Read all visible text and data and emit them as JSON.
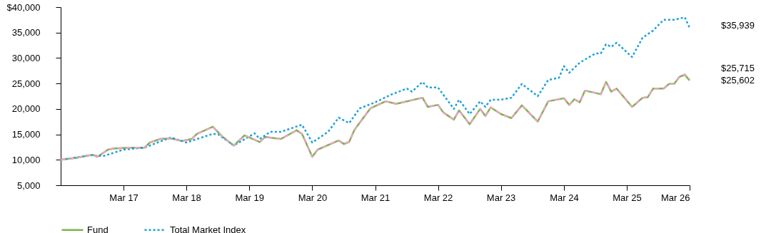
{
  "chart_data": {
    "type": "line",
    "xlim": [
      "2016-03",
      "2026-03"
    ],
    "ylim": [
      5000,
      40000
    ],
    "xticks": [
      {
        "value": "2017-03",
        "label": "Mar 17"
      },
      {
        "value": "2018-03",
        "label": "Mar 18"
      },
      {
        "value": "2019-03",
        "label": "Mar 19"
      },
      {
        "value": "2020-03",
        "label": "Mar 20"
      },
      {
        "value": "2021-03",
        "label": "Mar 21"
      },
      {
        "value": "2022-03",
        "label": "Mar 22"
      },
      {
        "value": "2023-03",
        "label": "Mar 23"
      },
      {
        "value": "2024-03",
        "label": "Mar 24"
      },
      {
        "value": "2025-03",
        "label": "Mar 25"
      },
      {
        "value": "2026-03",
        "label": "Mar 26"
      }
    ],
    "yticks": [
      {
        "value": 5000,
        "label": "5,000"
      },
      {
        "value": 10000,
        "label": "10,000"
      },
      {
        "value": 15000,
        "label": "15,000"
      },
      {
        "value": 20000,
        "label": "20,000"
      },
      {
        "value": 25000,
        "label": "25,000"
      },
      {
        "value": 30000,
        "label": "30,000"
      },
      {
        "value": 35000,
        "label": "35,000"
      },
      {
        "value": 40000,
        "label": "$40,000"
      }
    ],
    "legend": "bottom",
    "series": [
      {
        "name": "Fund",
        "color": "#7ab648",
        "line_style": "solid",
        "x": [
          "2016-03",
          "2016-06",
          "2016-09",
          "2016-10",
          "2016-12",
          "2017-01",
          "2017-04",
          "2017-07",
          "2017-08",
          "2017-10",
          "2017-12",
          "2018-02",
          "2018-04",
          "2018-05",
          "2018-08",
          "2018-10",
          "2018-12",
          "2019-02",
          "2019-03",
          "2019-05",
          "2019-06",
          "2019-09",
          "2019-12",
          "2020-01",
          "2020-03",
          "2020-04",
          "2020-08",
          "2020-09",
          "2020-10",
          "2020-11",
          "2021-02",
          "2021-05",
          "2021-07",
          "2021-12",
          "2022-01",
          "2022-03",
          "2022-04",
          "2022-06",
          "2022-07",
          "2022-09",
          "2022-11",
          "2022-12",
          "2023-01",
          "2023-03",
          "2023-05",
          "2023-07",
          "2023-10",
          "2023-12",
          "2024-03",
          "2024-04",
          "2024-05",
          "2024-06",
          "2024-07",
          "2024-10",
          "2024-11",
          "2024-12",
          "2025-01",
          "2025-04",
          "2025-06",
          "2025-07",
          "2025-08",
          "2025-10",
          "2025-11",
          "2025-12",
          "2026-01",
          "2026-02",
          "2026-03"
        ],
        "values": [
          10000,
          10400,
          11000,
          10600,
          12000,
          12200,
          12400,
          12400,
          13400,
          14100,
          14200,
          13700,
          14100,
          15100,
          16500,
          14400,
          12800,
          14800,
          14400,
          13500,
          14500,
          14100,
          15800,
          15100,
          10600,
          12000,
          13800,
          13100,
          13500,
          15900,
          20100,
          21500,
          21000,
          22200,
          20400,
          20800,
          19300,
          17900,
          19700,
          17000,
          20000,
          18600,
          20300,
          19000,
          18200,
          20700,
          17500,
          21500,
          22100,
          20800,
          21900,
          21300,
          23600,
          22900,
          25300,
          23400,
          24000,
          20400,
          22200,
          22300,
          24000,
          24000,
          24900,
          24900,
          26300,
          26700,
          25602
        ]
      },
      {
        "name": "Total Market Index",
        "color": "#1ea1d9",
        "line_style": "dotted",
        "x": [
          "2016-03",
          "2016-06",
          "2016-09",
          "2016-11",
          "2017-03",
          "2017-07",
          "2017-12",
          "2018-03",
          "2018-08",
          "2018-09",
          "2018-12",
          "2019-04",
          "2019-05",
          "2019-07",
          "2019-09",
          "2020-01",
          "2020-03",
          "2020-06",
          "2020-08",
          "2020-10",
          "2020-12",
          "2021-03",
          "2021-06",
          "2021-09",
          "2021-10",
          "2021-12",
          "2022-01",
          "2022-03",
          "2022-06",
          "2022-07",
          "2022-09",
          "2022-11",
          "2022-12",
          "2023-01",
          "2023-03",
          "2023-05",
          "2023-07",
          "2023-10",
          "2023-12",
          "2024-02",
          "2024-03",
          "2024-04",
          "2024-06",
          "2024-09",
          "2024-10",
          "2024-11",
          "2024-12",
          "2025-01",
          "2025-04",
          "2025-06",
          "2025-08",
          "2025-10",
          "2025-12",
          "2026-02",
          "2026-03"
        ],
        "values": [
          10000,
          10500,
          10900,
          10700,
          12000,
          12400,
          14400,
          13400,
          15100,
          15000,
          12800,
          15200,
          14100,
          15500,
          15500,
          16900,
          13400,
          15500,
          18300,
          17200,
          20100,
          21300,
          22800,
          24000,
          23400,
          25300,
          24200,
          24200,
          20000,
          21800,
          19000,
          21500,
          20400,
          21800,
          21800,
          22200,
          24900,
          22500,
          25700,
          26100,
          28400,
          27100,
          29100,
          30900,
          30900,
          32700,
          32200,
          33000,
          30200,
          34000,
          35400,
          37500,
          37500,
          38000,
          35939
        ]
      },
      {
        "color": "#e8a3c3",
        "line_style": "dashed",
        "x": [
          "2016-03",
          "2016-06",
          "2016-09",
          "2016-10",
          "2016-12",
          "2017-01",
          "2017-04",
          "2017-07",
          "2017-08",
          "2017-10",
          "2017-12",
          "2018-02",
          "2018-04",
          "2018-05",
          "2018-08",
          "2018-10",
          "2018-12",
          "2019-02",
          "2019-03",
          "2019-05",
          "2019-06",
          "2019-09",
          "2019-12",
          "2020-01",
          "2020-03",
          "2020-04",
          "2020-08",
          "2020-09",
          "2020-10",
          "2020-11",
          "2021-02",
          "2021-05",
          "2021-07",
          "2021-12",
          "2022-01",
          "2022-03",
          "2022-04",
          "2022-06",
          "2022-07",
          "2022-09",
          "2022-11",
          "2022-12",
          "2023-01",
          "2023-03",
          "2023-05",
          "2023-07",
          "2023-10",
          "2023-12",
          "2024-03",
          "2024-04",
          "2024-05",
          "2024-06",
          "2024-07",
          "2024-10",
          "2024-11",
          "2024-12",
          "2025-01",
          "2025-04",
          "2025-06",
          "2025-07",
          "2025-08",
          "2025-10",
          "2025-11",
          "2025-12",
          "2026-01",
          "2026-02",
          "2026-03"
        ],
        "values": [
          10000,
          10400,
          11000,
          10600,
          12000,
          12200,
          12400,
          12400,
          13400,
          14100,
          14200,
          13700,
          14100,
          15100,
          16500,
          14400,
          12800,
          14800,
          14400,
          13500,
          14500,
          14100,
          15800,
          15100,
          10600,
          12000,
          13800,
          13100,
          13500,
          15900,
          20100,
          21500,
          21000,
          22200,
          20400,
          20800,
          19300,
          17900,
          19700,
          17000,
          20000,
          18600,
          20300,
          19000,
          18200,
          20700,
          17500,
          21500,
          22100,
          20800,
          21900,
          21300,
          23600,
          22900,
          25300,
          23400,
          24000,
          20400,
          22200,
          22300,
          24000,
          24000,
          24900,
          24900,
          26300,
          26800,
          25715
        ]
      }
    ],
    "annotations": [
      "$35,939",
      "$25,715",
      "$25,602"
    ]
  }
}
